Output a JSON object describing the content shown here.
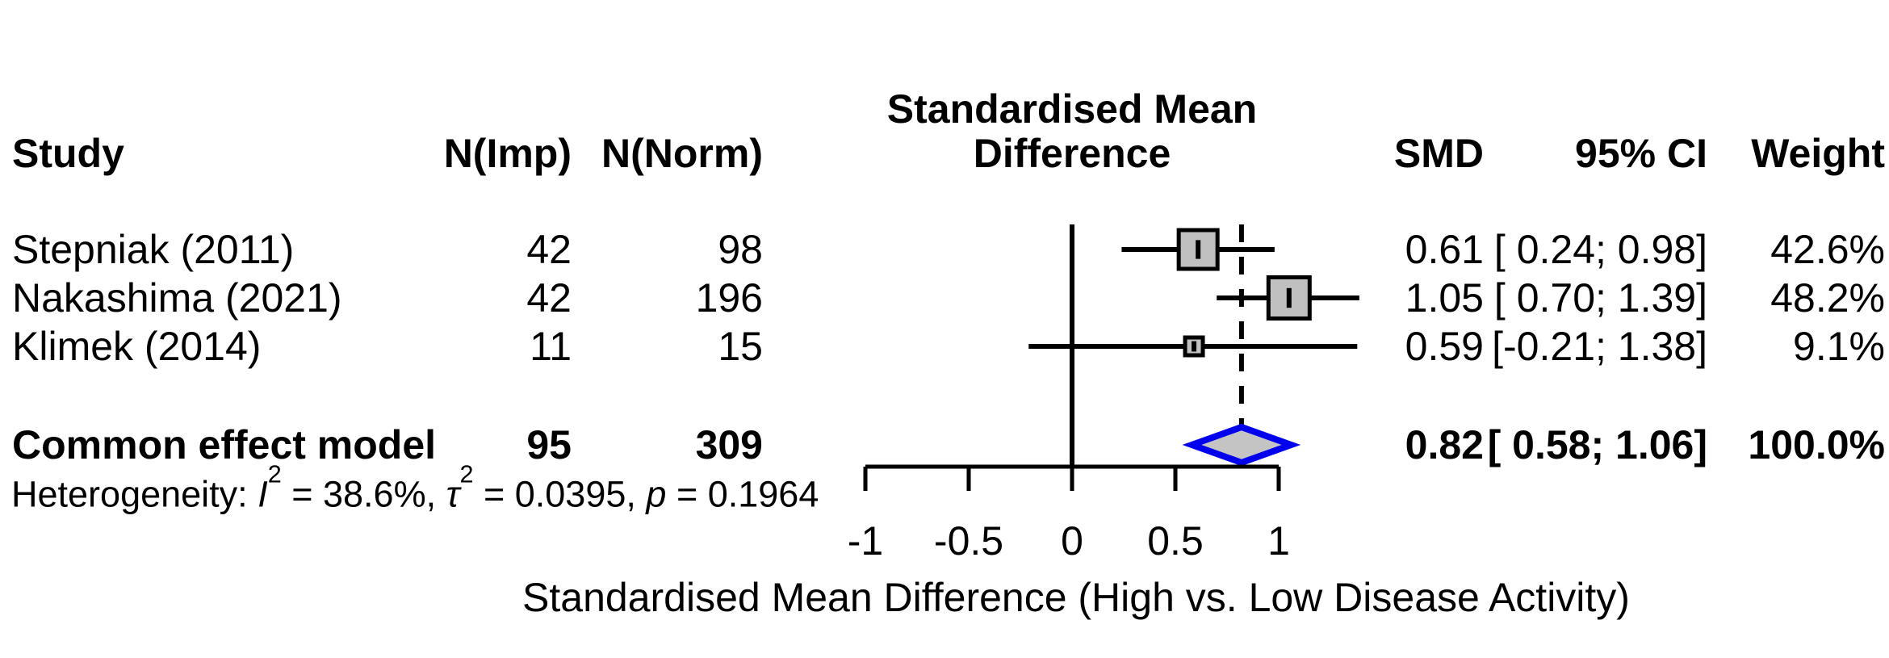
{
  "title": {
    "line1": "Standardised Mean",
    "line2": "Difference"
  },
  "columns": {
    "study": "Study",
    "n_imp": "N(Imp)",
    "n_norm": "N(Norm)",
    "smd": "SMD",
    "ci": "95% CI",
    "weight": "Weight"
  },
  "rows": [
    {
      "study": "Stepniak (2011)",
      "n_imp": "42",
      "n_norm": "98",
      "smd": "0.61",
      "ci": "[ 0.24; 0.98]",
      "weight": "42.6%"
    },
    {
      "study": "Nakashima (2021)",
      "n_imp": "42",
      "n_norm": "196",
      "smd": "1.05",
      "ci": "[ 0.70; 1.39]",
      "weight": "48.2%"
    },
    {
      "study": "Klimek (2014)",
      "n_imp": "11",
      "n_norm": "15",
      "smd": "0.59",
      "ci": "[-0.21; 1.38]",
      "weight": "9.1%"
    }
  ],
  "pooled": {
    "label": "Common effect model",
    "n_imp": "95",
    "n_norm": "309",
    "smd": "0.82",
    "ci": "[ 0.58; 1.06]",
    "weight": "100.0%"
  },
  "het": {
    "prefix": "Heterogeneity: ",
    "i_sym": "I",
    "i_sup": "2",
    "i_eq": " = 38.6%, ",
    "tau_sym": "τ",
    "tau_sup": "2",
    "tau_eq": " = 0.0395, ",
    "p_sym": "p",
    "p_eq": " = 0.1964"
  },
  "axis": {
    "ticks": [
      "-1",
      "-0.5",
      "0",
      "0.5",
      "1"
    ],
    "label": "Standardised Mean Difference (High vs. Low Disease Activity)"
  },
  "chart_data": {
    "type": "forest",
    "effect_measure": "SMD",
    "title": "Standardised Mean Difference",
    "x_axis": {
      "label": "Standardised Mean Difference (High vs. Low Disease Activity)",
      "ticks": [
        -1,
        -0.5,
        0,
        0.5,
        1
      ],
      "range": [
        -1,
        1
      ],
      "ref_line": 0
    },
    "studies": [
      {
        "name": "Stepniak (2011)",
        "n_imp": 42,
        "n_norm": 98,
        "smd": 0.61,
        "ci_low": 0.24,
        "ci_high": 0.98,
        "weight_pct": 42.6
      },
      {
        "name": "Nakashima (2021)",
        "n_imp": 42,
        "n_norm": 196,
        "smd": 1.05,
        "ci_low": 0.7,
        "ci_high": 1.39,
        "weight_pct": 48.2
      },
      {
        "name": "Klimek (2014)",
        "n_imp": 11,
        "n_norm": 15,
        "smd": 0.59,
        "ci_low": -0.21,
        "ci_high": 1.38,
        "weight_pct": 9.1
      }
    ],
    "pooled": {
      "name": "Common effect model",
      "model": "common",
      "n_imp": 95,
      "n_norm": 309,
      "smd": 0.82,
      "ci_low": 0.58,
      "ci_high": 1.06,
      "weight_pct": 100.0
    },
    "heterogeneity": {
      "I2_pct": 38.6,
      "tau2": 0.0395,
      "p": 0.1964
    },
    "colors": {
      "line": "#000000",
      "square_fill": "#c0c0c0",
      "square_border": "#000000",
      "diamond_fill": "#c4c4c4",
      "diamond_border": "#0000ee",
      "text": "#000000",
      "background": "#ffffff"
    }
  }
}
